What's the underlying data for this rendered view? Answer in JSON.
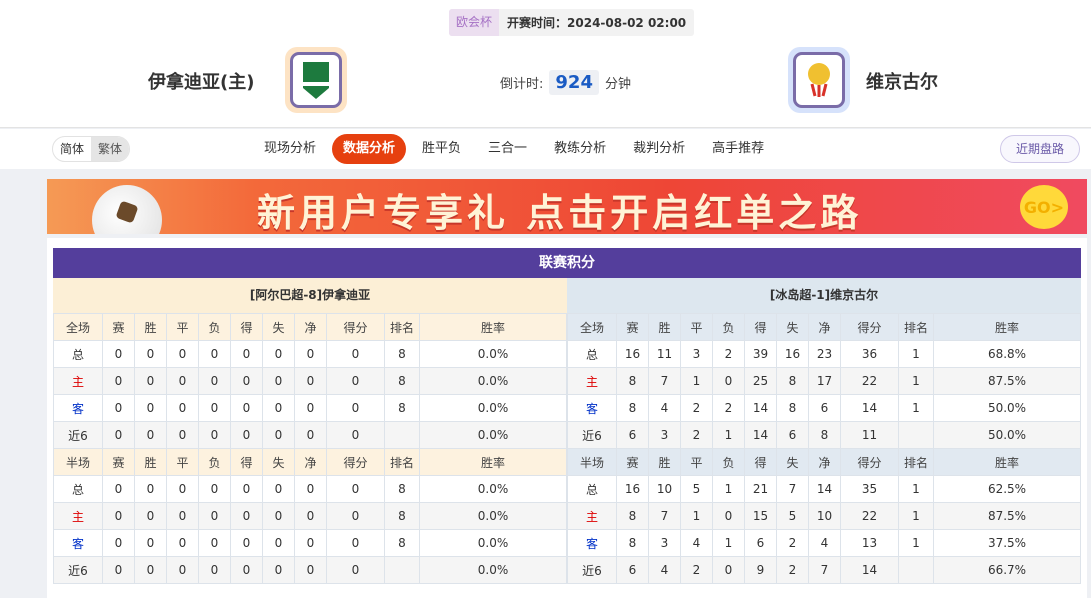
{
  "header": {
    "league": "欧会杯",
    "kickoff": "开赛时间：2024-08-02 02:00",
    "home_team": "伊拿迪亚(主)",
    "away_team": "维京古尔",
    "countdown_label": "倒计时:",
    "countdown_value": "924",
    "countdown_unit": "分钟"
  },
  "nav": {
    "lang": [
      "简体",
      "繁体"
    ],
    "tabs": [
      "现场分析",
      "数据分析",
      "胜平负",
      "三合一",
      "教练分析",
      "裁判分析",
      "高手推荐"
    ],
    "active_tab": "数据分析",
    "recent": "近期盘路"
  },
  "banner": {
    "text": "新用户专享礼 点击开启红单之路",
    "go": "GO>"
  },
  "standings": {
    "title": "联赛积分",
    "columns": [
      "赛",
      "胜",
      "平",
      "负",
      "得",
      "失",
      "净",
      "得分",
      "排名",
      "胜率"
    ],
    "left": {
      "team": "[阿尔巴超-8]伊拿迪亚",
      "full": {
        "label": "全场",
        "rows": [
          [
            "总",
            "0",
            "0",
            "0",
            "0",
            "0",
            "0",
            "0",
            "0",
            "8",
            "0.0%"
          ],
          [
            "主",
            "0",
            "0",
            "0",
            "0",
            "0",
            "0",
            "0",
            "0",
            "8",
            "0.0%"
          ],
          [
            "客",
            "0",
            "0",
            "0",
            "0",
            "0",
            "0",
            "0",
            "0",
            "8",
            "0.0%"
          ],
          [
            "近6",
            "0",
            "0",
            "0",
            "0",
            "0",
            "0",
            "0",
            "0",
            "",
            "0.0%"
          ]
        ]
      },
      "half": {
        "label": "半场",
        "rows": [
          [
            "总",
            "0",
            "0",
            "0",
            "0",
            "0",
            "0",
            "0",
            "0",
            "8",
            "0.0%"
          ],
          [
            "主",
            "0",
            "0",
            "0",
            "0",
            "0",
            "0",
            "0",
            "0",
            "8",
            "0.0%"
          ],
          [
            "客",
            "0",
            "0",
            "0",
            "0",
            "0",
            "0",
            "0",
            "0",
            "8",
            "0.0%"
          ],
          [
            "近6",
            "0",
            "0",
            "0",
            "0",
            "0",
            "0",
            "0",
            "0",
            "",
            "0.0%"
          ]
        ]
      }
    },
    "right": {
      "team": "[冰岛超-1]维京古尔",
      "full": {
        "label": "全场",
        "rows": [
          [
            "总",
            "16",
            "11",
            "3",
            "2",
            "39",
            "16",
            "23",
            "36",
            "1",
            "68.8%"
          ],
          [
            "主",
            "8",
            "7",
            "1",
            "0",
            "25",
            "8",
            "17",
            "22",
            "1",
            "87.5%"
          ],
          [
            "客",
            "8",
            "4",
            "2",
            "2",
            "14",
            "8",
            "6",
            "14",
            "1",
            "50.0%"
          ],
          [
            "近6",
            "6",
            "3",
            "2",
            "1",
            "14",
            "6",
            "8",
            "11",
            "",
            "50.0%"
          ]
        ]
      },
      "half": {
        "label": "半场",
        "rows": [
          [
            "总",
            "16",
            "10",
            "5",
            "1",
            "21",
            "7",
            "14",
            "35",
            "1",
            "62.5%"
          ],
          [
            "主",
            "8",
            "7",
            "1",
            "0",
            "15",
            "5",
            "10",
            "22",
            "1",
            "87.5%"
          ],
          [
            "客",
            "8",
            "3",
            "4",
            "1",
            "6",
            "2",
            "4",
            "13",
            "1",
            "37.5%"
          ],
          [
            "近6",
            "6",
            "4",
            "2",
            "0",
            "9",
            "2",
            "7",
            "14",
            "",
            "66.7%"
          ]
        ]
      }
    }
  },
  "colors": {
    "title_bar": "#543e9c",
    "active_tab": "#e6400f",
    "home_label": "#dd0000",
    "away_label": "#0030c8"
  }
}
